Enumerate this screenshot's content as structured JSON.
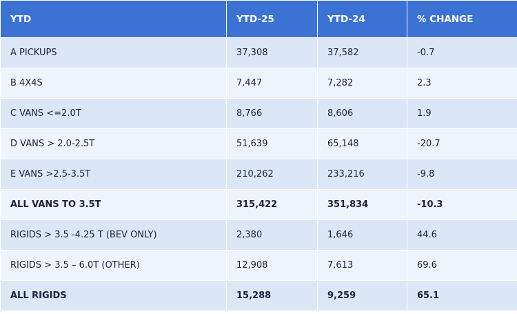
{
  "table": {
    "header": [
      "YTD",
      "YTD-25",
      "YTD-24",
      "% CHANGE"
    ],
    "rows": [
      [
        "A PICKUPS",
        "37,308",
        "37,582",
        "-0.7"
      ],
      [
        "B 4X4S",
        "7,447",
        "7,282",
        "2.3"
      ],
      [
        "C VANS <=2.0T",
        "8,766",
        "8,606",
        "1.9"
      ],
      [
        "D VANS > 2.0-2.5T",
        "51,639",
        "65,148",
        "-20.7"
      ],
      [
        "E VANS >2.5-3.5T",
        "210,262",
        "233,216",
        "-9.8"
      ],
      [
        "ALL VANS TO 3.5T",
        "315,422",
        "351,834",
        "-10.3"
      ],
      [
        "RIGIDS > 3.5 -4.25 T (BEV ONLY)",
        "2,380",
        "1,646",
        "44.6"
      ],
      [
        "RIGIDS > 3.5 – 6.0T (OTHER)",
        "12,908",
        "7,613",
        "69.6"
      ],
      [
        "ALL RIGIDS",
        "15,288",
        "9,259",
        "65.1"
      ]
    ]
  }
}
